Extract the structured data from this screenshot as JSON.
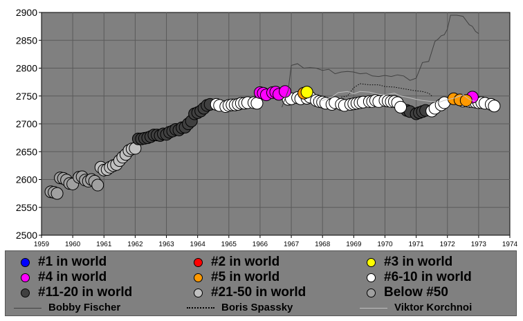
{
  "chart_data": {
    "type": "scatter",
    "title": "",
    "xlabel": "",
    "ylabel": "",
    "xlim": [
      1959,
      1974
    ],
    "ylim": [
      2500,
      2900
    ],
    "grid": true,
    "x_ticks": [
      "1959",
      "1960",
      "1961",
      "1962",
      "1963",
      "1964",
      "1965",
      "1966",
      "1967",
      "1968",
      "1969",
      "1970",
      "1971",
      "1972",
      "1973",
      "1974"
    ],
    "y_ticks": [
      "2500",
      "2550",
      "2600",
      "2650",
      "2700",
      "2750",
      "2800",
      "2850",
      "2900"
    ],
    "colors": {
      "plot_bg": "#808080",
      "grid": "#5a5a5a",
      "rank_1": "#0000ff",
      "rank_2": "#ff0000",
      "rank_3": "#ffff00",
      "rank_4": "#ff00ff",
      "rank_5": "#ff9900",
      "rank_6_10": "#ffffff",
      "rank_11_20": "#404040",
      "rank_21_50": "#c0c0c0",
      "below_50": "#a0a0a0"
    },
    "legend": {
      "placement": "bottom",
      "categories": [
        {
          "key": "rank_1",
          "label": "#1 in world"
        },
        {
          "key": "rank_2",
          "label": "#2 in world"
        },
        {
          "key": "rank_3",
          "label": "#3 in world"
        },
        {
          "key": "rank_4",
          "label": "#4 in world"
        },
        {
          "key": "rank_5",
          "label": "#5 in world"
        },
        {
          "key": "rank_6_10",
          "label": "#6-10 in world"
        },
        {
          "key": "rank_11_20",
          "label": "#11-20 in world"
        },
        {
          "key": "rank_21_50",
          "label": "#21-50 in world"
        },
        {
          "key": "below_50",
          "label": "Below #50"
        }
      ],
      "lines": [
        {
          "name": "Bobby Fischer",
          "style": "solid",
          "color": "#404040"
        },
        {
          "name": "Boris Spassky",
          "style": "dotted",
          "color": "#000000"
        },
        {
          "name": "Viktor Korchnoi",
          "style": "solid",
          "color": "#c0c0c0"
        }
      ]
    },
    "series": [
      {
        "category": "below_50",
        "points": [
          [
            1959.3,
            2578
          ],
          [
            1959.4,
            2577
          ],
          [
            1959.5,
            2575
          ],
          [
            1959.6,
            2603
          ],
          [
            1959.7,
            2602
          ],
          [
            1959.8,
            2599
          ],
          [
            1959.9,
            2593
          ],
          [
            1960.0,
            2592
          ],
          [
            1960.2,
            2604
          ],
          [
            1960.3,
            2605
          ],
          [
            1960.4,
            2599
          ],
          [
            1960.5,
            2597
          ],
          [
            1960.6,
            2600
          ],
          [
            1960.7,
            2597
          ],
          [
            1960.8,
            2590
          ]
        ]
      },
      {
        "category": "rank_21_50",
        "points": [
          [
            1960.9,
            2622
          ],
          [
            1961.0,
            2617
          ],
          [
            1961.1,
            2618
          ],
          [
            1961.2,
            2622
          ],
          [
            1961.3,
            2625
          ],
          [
            1961.4,
            2627
          ],
          [
            1961.5,
            2634
          ],
          [
            1961.6,
            2640
          ],
          [
            1961.7,
            2645
          ],
          [
            1961.8,
            2652
          ],
          [
            1961.9,
            2655
          ],
          [
            1962.0,
            2656
          ]
        ]
      },
      {
        "category": "rank_11_20",
        "points": [
          [
            1962.1,
            2673
          ],
          [
            1962.2,
            2673
          ],
          [
            1962.3,
            2674
          ],
          [
            1962.4,
            2675
          ],
          [
            1962.5,
            2677
          ],
          [
            1962.6,
            2680
          ],
          [
            1962.7,
            2680
          ],
          [
            1962.8,
            2679
          ],
          [
            1962.9,
            2682
          ],
          [
            1963.0,
            2681
          ],
          [
            1963.1,
            2685
          ],
          [
            1963.2,
            2687
          ],
          [
            1963.3,
            2690
          ],
          [
            1963.4,
            2689
          ],
          [
            1963.5,
            2693
          ],
          [
            1963.6,
            2694
          ],
          [
            1963.7,
            2700
          ],
          [
            1963.8,
            2705
          ],
          [
            1963.9,
            2718
          ],
          [
            1964.0,
            2720
          ],
          [
            1964.1,
            2723
          ],
          [
            1964.2,
            2728
          ],
          [
            1964.3,
            2733
          ],
          [
            1964.4,
            2735
          ],
          [
            1970.7,
            2724
          ],
          [
            1970.8,
            2722
          ],
          [
            1971.0,
            2718
          ],
          [
            1971.1,
            2720
          ],
          [
            1971.2,
            2722
          ],
          [
            1971.3,
            2724
          ]
        ]
      },
      {
        "category": "rank_6_10",
        "points": [
          [
            1964.6,
            2735
          ],
          [
            1964.7,
            2733
          ],
          [
            1964.9,
            2731
          ],
          [
            1965.0,
            2733
          ],
          [
            1965.1,
            2734
          ],
          [
            1965.2,
            2734
          ],
          [
            1965.3,
            2735
          ],
          [
            1965.4,
            2737
          ],
          [
            1965.5,
            2737
          ],
          [
            1965.6,
            2738
          ],
          [
            1965.8,
            2738
          ],
          [
            1965.9,
            2737
          ],
          [
            1966.9,
            2744
          ],
          [
            1967.0,
            2745
          ],
          [
            1967.2,
            2747
          ],
          [
            1967.3,
            2745
          ],
          [
            1967.5,
            2746
          ],
          [
            1967.6,
            2748
          ],
          [
            1967.8,
            2742
          ],
          [
            1967.9,
            2740
          ],
          [
            1968.0,
            2739
          ],
          [
            1968.1,
            2737
          ],
          [
            1968.3,
            2735
          ],
          [
            1968.4,
            2738
          ],
          [
            1968.6,
            2735
          ],
          [
            1968.7,
            2733
          ],
          [
            1968.9,
            2735
          ],
          [
            1969.0,
            2736
          ],
          [
            1969.1,
            2737
          ],
          [
            1969.2,
            2738
          ],
          [
            1969.3,
            2739
          ],
          [
            1969.5,
            2740
          ],
          [
            1969.6,
            2740
          ],
          [
            1969.7,
            2742
          ],
          [
            1969.8,
            2740
          ],
          [
            1970.0,
            2742
          ],
          [
            1970.1,
            2741
          ],
          [
            1970.2,
            2740
          ],
          [
            1970.3,
            2740
          ],
          [
            1970.4,
            2738
          ],
          [
            1970.5,
            2730
          ],
          [
            1971.5,
            2723
          ],
          [
            1971.6,
            2728
          ],
          [
            1971.8,
            2734
          ],
          [
            1971.9,
            2738
          ],
          [
            1972.5,
            2741
          ],
          [
            1972.7,
            2740
          ],
          [
            1972.8,
            2740
          ],
          [
            1972.9,
            2739
          ],
          [
            1973.0,
            2738
          ],
          [
            1973.1,
            2738
          ],
          [
            1973.2,
            2737
          ],
          [
            1973.4,
            2735
          ],
          [
            1973.5,
            2732
          ]
        ]
      },
      {
        "category": "rank_4",
        "points": [
          [
            1966.0,
            2756
          ],
          [
            1966.1,
            2755
          ],
          [
            1966.2,
            2752
          ],
          [
            1966.4,
            2756
          ],
          [
            1966.5,
            2757
          ],
          [
            1966.6,
            2753
          ],
          [
            1966.8,
            2758
          ],
          [
            1972.8,
            2748
          ]
        ]
      },
      {
        "category": "rank_5",
        "points": [
          [
            1967.4,
            2755
          ],
          [
            1972.2,
            2745
          ],
          [
            1972.4,
            2743
          ],
          [
            1972.6,
            2742
          ]
        ]
      },
      {
        "category": "rank_3",
        "points": [
          [
            1967.5,
            2757
          ]
        ]
      }
    ],
    "lines": [
      {
        "name": "Bobby Fischer",
        "points": [
          [
            1966.7,
            2730
          ],
          [
            1966.8,
            2745
          ],
          [
            1966.9,
            2760
          ],
          [
            1967.0,
            2805
          ],
          [
            1967.2,
            2808
          ],
          [
            1967.4,
            2800
          ],
          [
            1967.6,
            2801
          ],
          [
            1967.8,
            2800
          ],
          [
            1968.0,
            2796
          ],
          [
            1968.2,
            2798
          ],
          [
            1968.4,
            2790
          ],
          [
            1968.6,
            2793
          ],
          [
            1968.8,
            2794
          ],
          [
            1969.0,
            2793
          ],
          [
            1969.2,
            2790
          ],
          [
            1969.4,
            2791
          ],
          [
            1969.6,
            2786
          ],
          [
            1969.8,
            2785
          ],
          [
            1970.0,
            2787
          ],
          [
            1970.2,
            2785
          ],
          [
            1970.4,
            2788
          ],
          [
            1970.6,
            2786
          ],
          [
            1970.8,
            2778
          ],
          [
            1971.0,
            2782
          ],
          [
            1971.2,
            2810
          ],
          [
            1971.4,
            2812
          ],
          [
            1971.5,
            2830
          ],
          [
            1971.6,
            2848
          ],
          [
            1971.7,
            2852
          ],
          [
            1971.8,
            2858
          ],
          [
            1971.9,
            2860
          ],
          [
            1972.0,
            2870
          ],
          [
            1972.1,
            2895
          ],
          [
            1972.3,
            2895
          ],
          [
            1972.5,
            2893
          ],
          [
            1972.7,
            2878
          ],
          [
            1972.8,
            2875
          ],
          [
            1972.9,
            2866
          ],
          [
            1973.0,
            2862
          ]
        ]
      },
      {
        "name": "Boris Spassky",
        "points": [
          [
            1968.6,
            2748
          ],
          [
            1968.8,
            2750
          ],
          [
            1969.0,
            2765
          ],
          [
            1969.2,
            2772
          ],
          [
            1969.5,
            2770
          ],
          [
            1969.8,
            2770
          ],
          [
            1970.0,
            2767
          ],
          [
            1970.3,
            2766
          ],
          [
            1970.6,
            2763
          ],
          [
            1970.9,
            2760
          ],
          [
            1971.2,
            2758
          ],
          [
            1971.4,
            2755
          ],
          [
            1971.5,
            2750
          ]
        ]
      },
      {
        "name": "Viktor Korchnoi",
        "points": [
          [
            1967.7,
            2746
          ],
          [
            1968.0,
            2742
          ],
          [
            1968.3,
            2748
          ],
          [
            1968.5,
            2756
          ],
          [
            1968.8,
            2758
          ],
          [
            1969.0,
            2754
          ],
          [
            1969.2,
            2758
          ],
          [
            1969.5,
            2757
          ],
          [
            1969.8,
            2753
          ],
          [
            1970.0,
            2752
          ],
          [
            1970.3,
            2755
          ],
          [
            1970.5,
            2750
          ],
          [
            1970.7,
            2748
          ],
          [
            1971.0,
            2744
          ],
          [
            1971.2,
            2742
          ],
          [
            1971.5,
            2740
          ],
          [
            1971.7,
            2738
          ],
          [
            1971.9,
            2742
          ],
          [
            1972.2,
            2746
          ],
          [
            1972.5,
            2752
          ],
          [
            1972.7,
            2744
          ],
          [
            1972.9,
            2740
          ]
        ]
      }
    ]
  }
}
